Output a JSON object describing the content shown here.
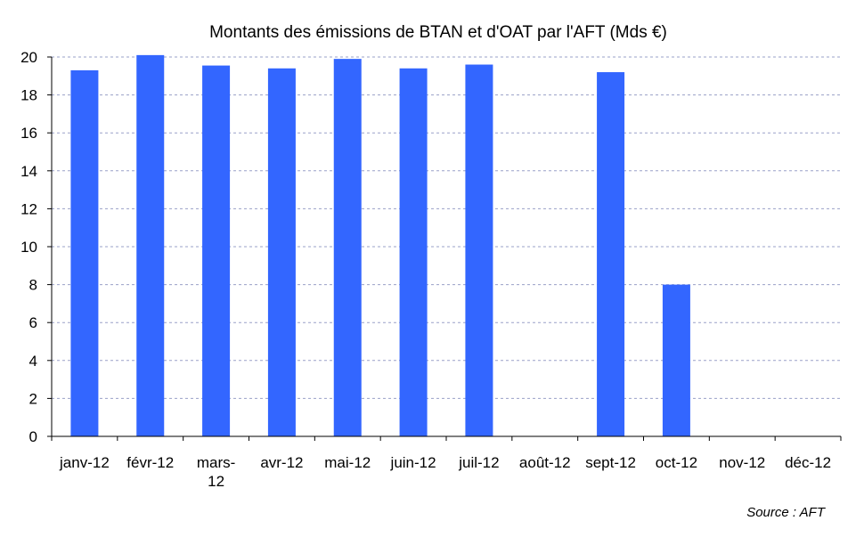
{
  "chart_data": {
    "type": "bar",
    "title": "Montants des émissions de BTAN et d'OAT par l'AFT (Mds €)",
    "categories": [
      "janv-12",
      "févr-12",
      "mars-12",
      "avr-12",
      "mai-12",
      "juin-12",
      "juil-12",
      "août-12",
      "sept-12",
      "oct-12",
      "nov-12",
      "déc-12"
    ],
    "category_lines": [
      [
        "janv-12"
      ],
      [
        "févr-12"
      ],
      [
        "mars-",
        "12"
      ],
      [
        "avr-12"
      ],
      [
        "mai-12"
      ],
      [
        "juin-12"
      ],
      [
        "juil-12"
      ],
      [
        "août-12"
      ],
      [
        "sept-12"
      ],
      [
        "oct-12"
      ],
      [
        "nov-12"
      ],
      [
        "déc-12"
      ]
    ],
    "values": [
      19.3,
      20.1,
      19.55,
      19.4,
      19.9,
      19.4,
      19.6,
      null,
      19.2,
      8.0,
      null,
      null
    ],
    "ylim": [
      0,
      20
    ],
    "yticks": [
      0,
      2,
      4,
      6,
      8,
      10,
      12,
      14,
      16,
      18,
      20
    ],
    "xlabel": "",
    "ylabel": "",
    "grid": true,
    "bar_color": "#3366ff",
    "grid_color": "#9aa0c8",
    "source": "Source : AFT"
  }
}
